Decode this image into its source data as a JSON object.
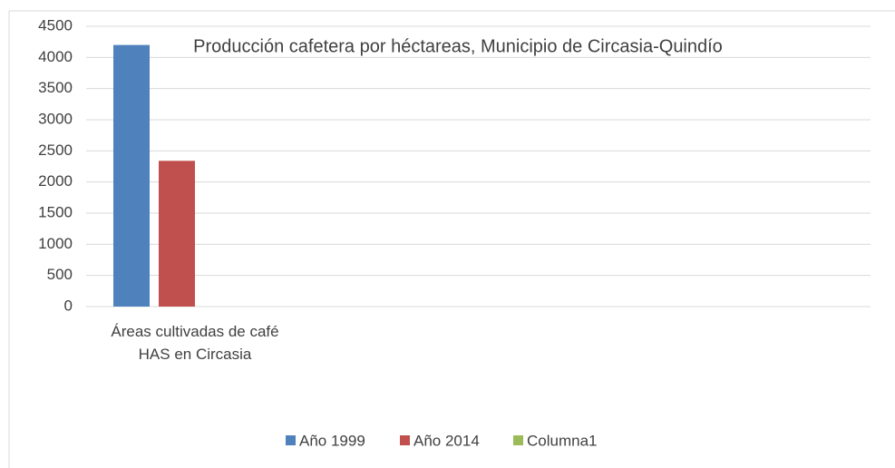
{
  "chart_data": {
    "type": "bar",
    "title": "Producción cafetera por héctareas, Municipio de  Circasia-Quindío",
    "categories": [
      "Áreas cultivadas de café HAS en Circasia"
    ],
    "series": [
      {
        "name": "Año 1999",
        "color": "#4f81bd",
        "values": [
          4200
        ]
      },
      {
        "name": "Año 2014",
        "color": "#c0504d",
        "values": [
          2340
        ]
      },
      {
        "name": "Columna1",
        "color": "#9bbb59",
        "values": [
          null
        ]
      }
    ],
    "ylim": [
      0,
      4500
    ],
    "yticks": [
      0,
      500,
      1000,
      1500,
      2000,
      2500,
      3000,
      3500,
      4000,
      4500
    ],
    "grid": true,
    "legend": "bottom"
  }
}
